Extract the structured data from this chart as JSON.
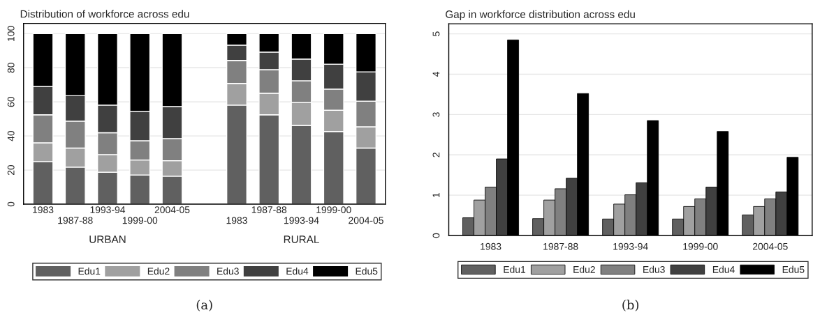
{
  "chart_data": [
    {
      "type": "bar",
      "stacked": true,
      "title": "Distribution of workforce across edu",
      "categories": [
        "1983",
        "1987-88",
        "1993-94",
        "1999-00",
        "2004-05",
        null,
        "1983",
        "1987-88",
        "1993-94",
        "1999-00",
        "2004-05"
      ],
      "series": [
        {
          "name": "Edu1",
          "color": "#606060",
          "values": [
            25.0,
            21.7,
            18.7,
            17.1,
            16.4,
            null,
            58.1,
            52.4,
            46.2,
            42.6,
            32.9
          ]
        },
        {
          "name": "Edu2",
          "color": "#a0a0a0",
          "values": [
            11.0,
            11.2,
            10.4,
            8.8,
            9.1,
            null,
            12.7,
            12.7,
            13.4,
            12.5,
            12.5
          ]
        },
        {
          "name": "Edu3",
          "color": "#808080",
          "values": [
            16.4,
            15.8,
            12.8,
            11.3,
            13.0,
            null,
            13.5,
            13.8,
            12.8,
            12.4,
            15.0
          ]
        },
        {
          "name": "Edu4",
          "color": "#404040",
          "values": [
            16.6,
            14.9,
            16.2,
            17.2,
            18.8,
            null,
            9.0,
            10.3,
            12.7,
            14.6,
            17.2
          ]
        },
        {
          "name": "Edu5",
          "color": "#000000",
          "values": [
            31.0,
            36.4,
            41.9,
            45.6,
            42.7,
            null,
            6.7,
            10.8,
            14.9,
            17.9,
            22.4
          ]
        }
      ],
      "ylim": [
        0,
        106
      ],
      "yticks": [
        0,
        20,
        40,
        60,
        80,
        100
      ],
      "grid": "y",
      "legend": "bottom",
      "annotations": [
        "URBAN",
        "RURAL",
        "(a)"
      ]
    },
    {
      "type": "bar",
      "title": "Gap in workforce distribution across edu",
      "categories": [
        "1983",
        "1987-88",
        "1993-94",
        "1999-00",
        "2004-05"
      ],
      "series": [
        {
          "name": "Edu1",
          "color": "#606060",
          "values": [
            0.44,
            0.42,
            0.41,
            0.41,
            0.51
          ]
        },
        {
          "name": "Edu2",
          "color": "#a0a0a0",
          "values": [
            0.88,
            0.88,
            0.78,
            0.72,
            0.72
          ]
        },
        {
          "name": "Edu3",
          "color": "#808080",
          "values": [
            1.2,
            1.16,
            1.01,
            0.91,
            0.91
          ]
        },
        {
          "name": "Edu4",
          "color": "#404040",
          "values": [
            1.9,
            1.42,
            1.31,
            1.2,
            1.08
          ]
        },
        {
          "name": "Edu5",
          "color": "#000000",
          "values": [
            4.85,
            3.52,
            2.85,
            2.58,
            1.94
          ]
        }
      ],
      "ylim": [
        0,
        5.25
      ],
      "yticks": [
        0,
        1,
        2,
        3,
        4,
        5
      ],
      "grid": "y",
      "legend": "bottom",
      "annotations": [
        "(b)"
      ]
    }
  ]
}
